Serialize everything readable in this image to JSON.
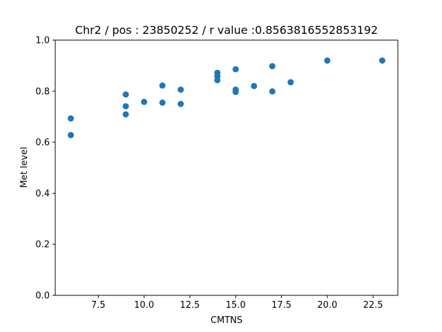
{
  "chart_data": {
    "type": "scatter",
    "title": "Chr2 / pos : 23850252 / r value :0.8563816552853192",
    "xlabel": "CMTNS",
    "ylabel": "Met level",
    "xlim": [
      5.15,
      23.85
    ],
    "ylim": [
      0.0,
      1.0
    ],
    "xticks": [
      7.5,
      10.0,
      12.5,
      15.0,
      17.5,
      20.0,
      22.5
    ],
    "xtick_labels": [
      "7.5",
      "10.0",
      "12.5",
      "15.0",
      "17.5",
      "20.0",
      "22.5"
    ],
    "yticks": [
      0.0,
      0.2,
      0.4,
      0.6,
      0.8,
      1.0
    ],
    "ytick_labels": [
      "0.0",
      "0.2",
      "0.4",
      "0.6",
      "0.8",
      "1.0"
    ],
    "grid": false,
    "color": "#1f77b4",
    "points": [
      {
        "x": 6,
        "y": 0.693
      },
      {
        "x": 6,
        "y": 0.628
      },
      {
        "x": 9,
        "y": 0.787
      },
      {
        "x": 9,
        "y": 0.741
      },
      {
        "x": 9,
        "y": 0.709
      },
      {
        "x": 10,
        "y": 0.758
      },
      {
        "x": 11,
        "y": 0.822
      },
      {
        "x": 11,
        "y": 0.755
      },
      {
        "x": 12,
        "y": 0.806
      },
      {
        "x": 12,
        "y": 0.75
      },
      {
        "x": 14,
        "y": 0.872
      },
      {
        "x": 14,
        "y": 0.858
      },
      {
        "x": 14,
        "y": 0.843
      },
      {
        "x": 15,
        "y": 0.886
      },
      {
        "x": 15,
        "y": 0.806
      },
      {
        "x": 15,
        "y": 0.797
      },
      {
        "x": 16,
        "y": 0.82
      },
      {
        "x": 17,
        "y": 0.898
      },
      {
        "x": 17,
        "y": 0.799
      },
      {
        "x": 18,
        "y": 0.835
      },
      {
        "x": 20,
        "y": 0.92
      },
      {
        "x": 23,
        "y": 0.92
      }
    ]
  }
}
